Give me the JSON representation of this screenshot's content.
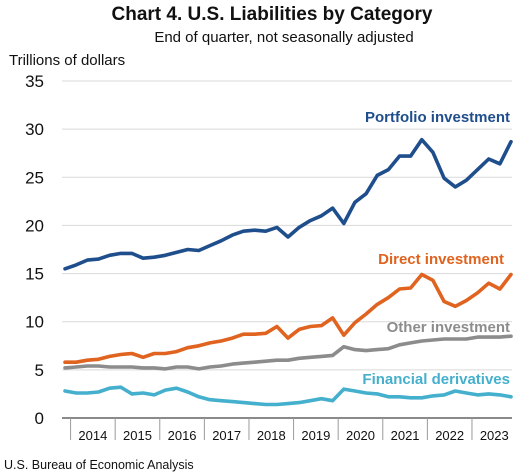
{
  "chart_data": {
    "type": "line",
    "title": "Chart 4. U.S. Liabilities by Category",
    "subtitle": "End of quarter, not seasonally adjusted",
    "ylabel": "Trillions of dollars",
    "xlabel": "",
    "source": "U.S. Bureau of Economic Analysis",
    "ylim": [
      0,
      35
    ],
    "yticks": [
      0,
      5,
      10,
      15,
      20,
      25,
      30,
      35
    ],
    "xticks": [
      "2014",
      "2015",
      "2016",
      "2017",
      "2018",
      "2019",
      "2020",
      "2021",
      "2022",
      "2023"
    ],
    "grid": "horizontal",
    "x": [
      "2013 Q4",
      "2014 Q1",
      "2014 Q2",
      "2014 Q3",
      "2014 Q4",
      "2015 Q1",
      "2015 Q2",
      "2015 Q3",
      "2015 Q4",
      "2016 Q1",
      "2016 Q2",
      "2016 Q3",
      "2016 Q4",
      "2017 Q1",
      "2017 Q2",
      "2017 Q3",
      "2017 Q4",
      "2018 Q1",
      "2018 Q2",
      "2018 Q3",
      "2018 Q4",
      "2019 Q1",
      "2019 Q2",
      "2019 Q3",
      "2019 Q4",
      "2020 Q1",
      "2020 Q2",
      "2020 Q3",
      "2020 Q4",
      "2021 Q1",
      "2021 Q2",
      "2021 Q3",
      "2021 Q4",
      "2022 Q1",
      "2022 Q2",
      "2022 Q3",
      "2022 Q4",
      "2023 Q1",
      "2023 Q2",
      "2023 Q3",
      "2023 Q4"
    ],
    "series": [
      {
        "name": "Portfolio investment",
        "color": "#1f4e8c",
        "values": [
          15.5,
          15.9,
          16.4,
          16.5,
          16.9,
          17.1,
          17.1,
          16.6,
          16.7,
          16.9,
          17.2,
          17.5,
          17.4,
          17.9,
          18.4,
          19.0,
          19.4,
          19.5,
          19.4,
          19.8,
          18.8,
          19.8,
          20.5,
          21.0,
          21.8,
          20.2,
          22.4,
          23.3,
          25.2,
          25.8,
          27.2,
          27.2,
          28.9,
          27.6,
          24.9,
          24.0,
          24.7,
          25.8,
          26.9,
          26.4,
          28.7
        ]
      },
      {
        "name": "Direct investment",
        "color": "#e0631f",
        "values": [
          5.8,
          5.8,
          6.0,
          6.1,
          6.4,
          6.6,
          6.7,
          6.3,
          6.7,
          6.7,
          6.9,
          7.3,
          7.5,
          7.8,
          8.0,
          8.3,
          8.7,
          8.7,
          8.8,
          9.5,
          8.3,
          9.2,
          9.5,
          9.6,
          10.4,
          8.6,
          9.9,
          10.8,
          11.8,
          12.5,
          13.4,
          13.5,
          14.9,
          14.3,
          12.1,
          11.6,
          12.2,
          13.0,
          14.0,
          13.4,
          14.9
        ]
      },
      {
        "name": "Other investment",
        "color": "#8c8c8c",
        "values": [
          5.2,
          5.3,
          5.4,
          5.4,
          5.3,
          5.3,
          5.3,
          5.2,
          5.2,
          5.1,
          5.3,
          5.3,
          5.1,
          5.3,
          5.4,
          5.6,
          5.7,
          5.8,
          5.9,
          6.0,
          6.0,
          6.2,
          6.3,
          6.4,
          6.5,
          7.4,
          7.1,
          7.0,
          7.1,
          7.2,
          7.6,
          7.8,
          8.0,
          8.1,
          8.2,
          8.2,
          8.2,
          8.4,
          8.4,
          8.4,
          8.5
        ]
      },
      {
        "name": "Financial derivatives",
        "color": "#45b0cd",
        "values": [
          2.8,
          2.6,
          2.6,
          2.7,
          3.1,
          3.2,
          2.5,
          2.6,
          2.4,
          2.9,
          3.1,
          2.7,
          2.2,
          1.9,
          1.8,
          1.7,
          1.6,
          1.5,
          1.4,
          1.4,
          1.5,
          1.6,
          1.8,
          2.0,
          1.8,
          3.0,
          2.8,
          2.6,
          2.5,
          2.2,
          2.2,
          2.1,
          2.1,
          2.3,
          2.4,
          2.8,
          2.6,
          2.4,
          2.5,
          2.4,
          2.2
        ]
      }
    ]
  }
}
